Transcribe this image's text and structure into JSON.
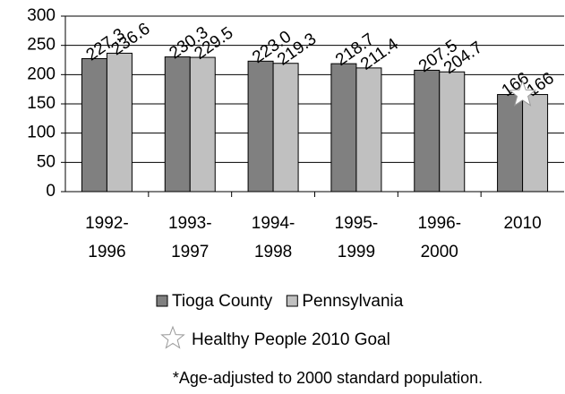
{
  "chart_data": {
    "type": "bar",
    "categories": [
      "1992-1996",
      "1993-1997",
      "1994-1998",
      "1995-1999",
      "1996-2000",
      "2010"
    ],
    "series": [
      {
        "name": "Tioga County",
        "color": "#808080",
        "values": [
          227.3,
          230.3,
          223.0,
          218.7,
          207.5,
          166
        ],
        "value_labels": [
          "227.3",
          "230.3",
          "223.0",
          "218.7",
          "207.5",
          "166"
        ]
      },
      {
        "name": "Pennsylvania",
        "color": "#c0c0c0",
        "values": [
          236.6,
          229.5,
          219.3,
          211.4,
          204.7,
          166
        ],
        "value_labels": [
          "236.6",
          "229.5",
          "219.3",
          "211.4",
          "204.7",
          "166"
        ]
      }
    ],
    "goal": {
      "name": "Healthy People 2010 Goal",
      "values": [
        null,
        null,
        null,
        null,
        null,
        166
      ]
    },
    "ylim": [
      0,
      300
    ],
    "yticks": [
      0,
      50,
      100,
      150,
      200,
      250,
      300
    ],
    "grid": true,
    "footnote": "*Age-adjusted to 2000 standard population."
  }
}
